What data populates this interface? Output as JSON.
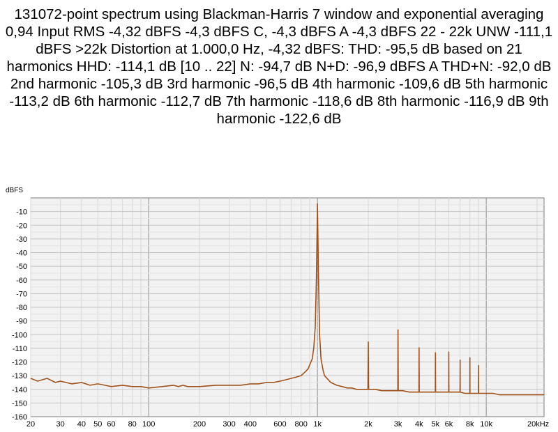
{
  "chart_data": {
    "type": "line",
    "title": "131072-point spectrum using Blackman-Harris 7 window and exponential averaging 0,94 Input RMS -4,32 dBFS -4,3 dBFS C, -4,3 dBFS A -4,3 dBFS 22 - 22k UNW -111,1 dBFS >22k Distortion at 1.000,0 Hz, -4,32 dBFS: THD: -95,5 dB based on 21 harmonics HHD: -114,1 dB [10 .. 22] N: -94,7 dB N+D: -96,9 dBFS A THD+N: -92,0 dB 2nd harmonic -105,3 dB 3rd harmonic -96,5 dB 4th harmonic -109,6 dB 5th harmonic -113,2 dB 6th harmonic -112,7 dB 7th harmonic -118,6 dB 8th harmonic -116,9 dB 9th harmonic -122,6 dB",
    "ylabel": "dBFS",
    "xlabel": "",
    "x_scale": "log",
    "xlim": [
      20,
      22000
    ],
    "ylim": [
      -160,
      0
    ],
    "grid": true,
    "x_ticks": [
      {
        "value": 20,
        "label": "20"
      },
      {
        "value": 30,
        "label": "30"
      },
      {
        "value": 40,
        "label": "40"
      },
      {
        "value": 50,
        "label": "50"
      },
      {
        "value": 60,
        "label": "60"
      },
      {
        "value": 80,
        "label": "80"
      },
      {
        "value": 100,
        "label": "100"
      },
      {
        "value": 200,
        "label": "200"
      },
      {
        "value": 300,
        "label": "300"
      },
      {
        "value": 400,
        "label": "400"
      },
      {
        "value": 600,
        "label": "600"
      },
      {
        "value": 800,
        "label": "800"
      },
      {
        "value": 1000,
        "label": "1k"
      },
      {
        "value": 2000,
        "label": "2k"
      },
      {
        "value": 3000,
        "label": "3k"
      },
      {
        "value": 4000,
        "label": "4k"
      },
      {
        "value": 5000,
        "label": "5k"
      },
      {
        "value": 6000,
        "label": "6k"
      },
      {
        "value": 8000,
        "label": "8k"
      },
      {
        "value": 10000,
        "label": "10k"
      },
      {
        "value": 20000,
        "label": "20kHz"
      }
    ],
    "y_ticks": [
      {
        "value": -10,
        "label": "-10"
      },
      {
        "value": -20,
        "label": "-20"
      },
      {
        "value": -30,
        "label": "-30"
      },
      {
        "value": -40,
        "label": "-40"
      },
      {
        "value": -50,
        "label": "-50"
      },
      {
        "value": -60,
        "label": "-60"
      },
      {
        "value": -70,
        "label": "-70"
      },
      {
        "value": -80,
        "label": "-80"
      },
      {
        "value": -90,
        "label": "-90"
      },
      {
        "value": -100,
        "label": "-100"
      },
      {
        "value": -110,
        "label": "-110"
      },
      {
        "value": -120,
        "label": "-120"
      },
      {
        "value": -130,
        "label": "-130"
      },
      {
        "value": -140,
        "label": "-140"
      },
      {
        "value": -150,
        "label": "-150"
      },
      {
        "value": -160,
        "label": "-160"
      }
    ],
    "series": [
      {
        "color": "#a0521a",
        "x": [
          20,
          22,
          25,
          28,
          30,
          35,
          40,
          45,
          50,
          55,
          60,
          70,
          80,
          90,
          100,
          120,
          140,
          150,
          160,
          170,
          180,
          200,
          250,
          300,
          350,
          400,
          450,
          500,
          550,
          600,
          650,
          700,
          750,
          800,
          850,
          880,
          900,
          930,
          950,
          970,
          985,
          995,
          1000,
          1005,
          1015,
          1030,
          1050,
          1080,
          1100,
          1200,
          1300,
          1400,
          1500,
          1600,
          1700,
          1800,
          1900,
          1990,
          2000,
          2010,
          2200,
          2400,
          2600,
          2800,
          2990,
          3000,
          3010,
          3200,
          3500,
          3990,
          4000,
          4010,
          4500,
          4990,
          5000,
          5010,
          5500,
          5990,
          6000,
          6010,
          6500,
          6990,
          7000,
          7010,
          7500,
          7990,
          8000,
          8010,
          8500,
          8990,
          9000,
          9010,
          9500,
          10000,
          11000,
          12000,
          13000,
          14000,
          15000,
          16000,
          17000,
          18000,
          19000,
          20000,
          21000,
          22000
        ],
        "y": [
          -132,
          -134,
          -132,
          -135,
          -134,
          -136,
          -135,
          -137,
          -136,
          -137,
          -138,
          -137,
          -138,
          -138,
          -139,
          -138,
          -137,
          -138,
          -137,
          -138,
          -138,
          -138,
          -137,
          -137,
          -137,
          -136,
          -136,
          -135,
          -135,
          -134,
          -133,
          -132,
          -131,
          -130,
          -127,
          -125,
          -122,
          -118,
          -110,
          -95,
          -60,
          -25,
          -4.3,
          -25,
          -60,
          -100,
          -118,
          -126,
          -130,
          -135,
          -137,
          -138,
          -139,
          -139,
          -140,
          -140,
          -140,
          -140,
          -105.3,
          -140,
          -140,
          -141,
          -141,
          -141,
          -141,
          -96.5,
          -141,
          -141,
          -142,
          -142,
          -109.6,
          -142,
          -142,
          -142,
          -113.2,
          -142,
          -142,
          -142,
          -112.7,
          -142,
          -142,
          -142,
          -118.6,
          -142,
          -143,
          -143,
          -116.9,
          -143,
          -143,
          -143,
          -122.6,
          -143,
          -143,
          -143,
          -143,
          -144,
          -144,
          -144,
          -144,
          -144,
          -144,
          -144,
          -144,
          -144,
          -144,
          -144
        ]
      }
    ]
  }
}
